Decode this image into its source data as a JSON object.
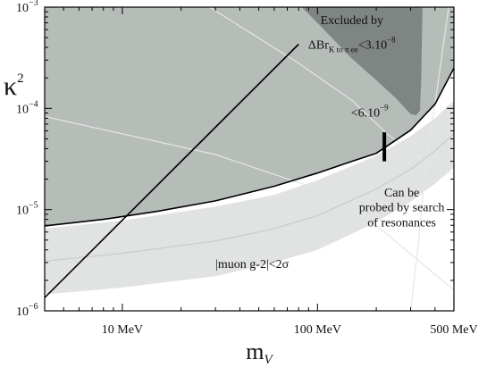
{
  "chart_data": {
    "type": "area",
    "xscale": "log",
    "yscale": "log",
    "xlim": [
      4,
      500
    ],
    "ylim": [
      1e-06,
      0.001
    ],
    "xlabel": "m",
    "xlabel_sub": "V",
    "ylabel": "κ",
    "ylabel_sup": "2",
    "x_ticks": [
      {
        "value": 10,
        "label": "10 MeV"
      },
      {
        "value": 100,
        "label": "100 MeV"
      },
      {
        "value": 500,
        "label": "500 MeV"
      }
    ],
    "y_ticks": [
      {
        "value": 0.001,
        "base": "10",
        "exp": "−3"
      },
      {
        "value": 0.0001,
        "base": "10",
        "exp": "−4"
      },
      {
        "value": 1e-05,
        "base": "10",
        "exp": "−5"
      },
      {
        "value": 1e-06,
        "base": "10",
        "exp": "−6"
      }
    ],
    "regions": [
      {
        "role": "excluded-lower-bound",
        "fill": "#b6bcb8",
        "boundary": [
          [
            4,
            6.9e-06
          ],
          [
            8,
            8e-06
          ],
          [
            15,
            9.6e-06
          ],
          [
            30,
            1.22e-05
          ],
          [
            60,
            1.7e-05
          ],
          [
            100,
            2.3e-05
          ],
          [
            150,
            3e-05
          ],
          [
            200,
            3.6e-05
          ],
          [
            300,
            6.1e-05
          ],
          [
            400,
            0.00011
          ],
          [
            500,
            0.00025
          ]
        ]
      },
      {
        "role": "excluded-kaon-decay",
        "fill": "#7f8582",
        "boundary": [
          [
            83,
            0.001
          ],
          [
            100,
            0.0007
          ],
          [
            150,
            0.00031
          ],
          [
            200,
            0.00019
          ],
          [
            250,
            0.000128
          ],
          [
            300,
            8.8e-05
          ],
          [
            320,
            8.5e-05
          ],
          [
            335,
            9.5e-05
          ],
          [
            340,
            0.0002
          ],
          [
            345,
            0.001
          ]
        ]
      },
      {
        "role": "muon-g2-band",
        "fill": "#e1e3e2",
        "upper": [
          [
            4,
            6.5e-06
          ],
          [
            10,
            7.8e-06
          ],
          [
            30,
            1.07e-05
          ],
          [
            60,
            1.4e-05
          ],
          [
            100,
            1.95e-05
          ],
          [
            200,
            3.4e-05
          ],
          [
            300,
            5.3e-05
          ],
          [
            400,
            8e-05
          ],
          [
            500,
            0.00012
          ]
        ],
        "lower": [
          [
            4,
            1.45e-06
          ],
          [
            10,
            1.7e-06
          ],
          [
            30,
            2.2e-06
          ],
          [
            60,
            3e-06
          ],
          [
            100,
            4e-06
          ],
          [
            200,
            7.5e-06
          ],
          [
            300,
            1.2e-05
          ],
          [
            400,
            1.8e-05
          ],
          [
            500,
            2.6e-05
          ]
        ],
        "centre": [
          [
            4,
            3.1e-06
          ],
          [
            10,
            3.7e-06
          ],
          [
            30,
            4.9e-06
          ],
          [
            60,
            6.5e-06
          ],
          [
            100,
            8.7e-06
          ],
          [
            200,
            1.6e-05
          ],
          [
            300,
            2.5e-05
          ],
          [
            400,
            3.8e-05
          ],
          [
            500,
            5.6e-05
          ]
        ]
      }
    ],
    "lines": [
      {
        "role": "lower-bound-curve",
        "color": "#000000",
        "points": [
          [
            4,
            6.9e-06
          ],
          [
            8,
            8e-06
          ],
          [
            15,
            9.6e-06
          ],
          [
            30,
            1.22e-05
          ],
          [
            60,
            1.7e-05
          ],
          [
            100,
            2.3e-05
          ],
          [
            150,
            3e-05
          ],
          [
            200,
            3.6e-05
          ],
          [
            300,
            6.1e-05
          ],
          [
            400,
            0.00011
          ],
          [
            500,
            0.00025
          ]
        ]
      },
      {
        "role": "diagonal-bound",
        "color": "#000000",
        "points": [
          [
            4,
            1.35e-06
          ],
          [
            80,
            0.00043
          ]
        ]
      },
      {
        "role": "light-curve-a",
        "color": "#e4e7e5",
        "points": [
          [
            4,
            8.3e-05
          ],
          [
            30,
            3.5e-05
          ],
          [
            100,
            1.6e-05
          ],
          [
            200,
            7e-06
          ],
          [
            500,
            1.6e-06
          ]
        ]
      },
      {
        "role": "light-curve-b",
        "color": "#e4e7e5",
        "points": [
          [
            28,
            0.001
          ],
          [
            80,
            0.00028
          ],
          [
            150,
            0.00012
          ],
          [
            230,
            5.5e-05
          ],
          [
            330,
            3.3e-05
          ],
          [
            500,
            2.2e-05
          ]
        ]
      },
      {
        "role": "light-curve-c",
        "color": "#e4e7e5",
        "points": [
          [
            300,
            1e-06
          ],
          [
            330,
            5e-06
          ],
          [
            360,
            3e-05
          ],
          [
            400,
            0.00011
          ],
          [
            470,
            0.001
          ]
        ]
      }
    ],
    "marker": {
      "role": "probe-bar",
      "x": 220,
      "y_from": 3e-05,
      "y_to": 5.8e-05
    },
    "annotations": [
      {
        "id": "excluded",
        "text": "Excluded by",
        "x": 150,
        "y": 0.00068
      },
      {
        "id": "delta-br",
        "main": "ΔBr",
        "sub": "K to π ee",
        "rest": "<3.10",
        "sup": "−8",
        "x": 150,
        "y": 0.00039
      },
      {
        "id": "six-ten",
        "main": "<6.10",
        "sup": "−9",
        "x": 185,
        "y": 8.3e-05
      },
      {
        "id": "probe-1",
        "text": "Can be",
        "x": 270,
        "y": 1.35e-05
      },
      {
        "id": "probe-2",
        "text": "probed by search",
        "x": 270,
        "y": 9.6e-06
      },
      {
        "id": "probe-3",
        "text": "of resonances",
        "x": 270,
        "y": 6.8e-06
      },
      {
        "id": "muon-g2",
        "text": "|muon g-2|<2σ",
        "x": 30,
        "y": 2.65e-06
      }
    ]
  }
}
